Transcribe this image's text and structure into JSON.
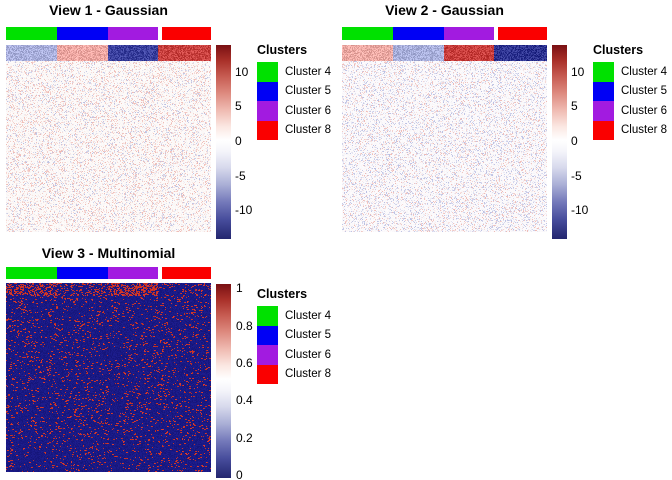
{
  "views": [
    {
      "title": "View 1 - Gaussian",
      "colorbar": {
        "ticks": [
          "10",
          "5",
          "0",
          "-5",
          "-10"
        ],
        "start_pct": 13.9,
        "step_pct": 17.8
      },
      "render": {
        "kind": "gaussian",
        "seed": 11,
        "warm_ratio": 0.62,
        "band_colors": [
          [
            169,
            175,
            220
          ],
          [
            238,
            167,
            162
          ],
          [
            58,
            64,
            158
          ],
          [
            202,
            66,
            64
          ]
        ],
        "body_base": [
          252,
          249,
          248
        ],
        "body_density": 0.32,
        "warm_tint": [
          228,
          138,
          128
        ],
        "cool_tint": [
          138,
          148,
          208
        ]
      }
    },
    {
      "title": "View 2 - Gaussian",
      "colorbar": {
        "ticks": [
          "10",
          "5",
          "0",
          "-5",
          "-10"
        ],
        "start_pct": 13.9,
        "step_pct": 17.8
      },
      "render": {
        "kind": "gaussian",
        "seed": 22,
        "warm_ratio": 0.4,
        "band_colors": [
          [
            237,
            170,
            164
          ],
          [
            168,
            175,
            219
          ],
          [
            201,
            62,
            60
          ],
          [
            45,
            51,
            145
          ]
        ],
        "body_base": [
          251,
          249,
          251
        ],
        "body_density": 0.32,
        "warm_tint": [
          228,
          138,
          128
        ],
        "cool_tint": [
          138,
          148,
          208
        ]
      }
    },
    {
      "title": "View 3 - Multinomial",
      "colorbar": {
        "ticks": [
          "1",
          "0.8",
          "0.6",
          "0.4",
          "0.2",
          "0"
        ],
        "start_pct": 2.1,
        "step_pct": 19.3
      },
      "render": {
        "kind": "multinomial",
        "seed": 33,
        "base": [
          25,
          25,
          132
        ],
        "dot": [
          202,
          52,
          40
        ],
        "dense_top": [
          0.34,
          0.2,
          0.42,
          0.1
        ],
        "dense_rows": 13,
        "body_density": 0.068,
        "dash_prob": 0.45
      }
    }
  ],
  "legend": {
    "title": "Clusters",
    "items": [
      {
        "label": "Cluster 4",
        "color": "#00E100"
      },
      {
        "label": "Cluster 5",
        "color": "#0000F5"
      },
      {
        "label": "Cluster 6",
        "color": "#A21BE0"
      },
      {
        "label": "Cluster 8",
        "color": "#FA0000"
      }
    ]
  },
  "colorbar_gradient": [
    "#7A1013 0%",
    "#A93029 8%",
    "#C65B51 16%",
    "#DE8B80 25%",
    "#F0BDB4 34%",
    "#FBE7E2 42%",
    "#FFFFFF 49%",
    "#F4F4FA 55%",
    "#D8DAED 63%",
    "#AAAFD6 72%",
    "#7479BA 81%",
    "#474D9C 90%",
    "#23266F 100%"
  ],
  "chart_data": [
    {
      "type": "heatmap",
      "title": "View 1 - Gaussian",
      "column_groups": [
        "Cluster 4",
        "Cluster 5",
        "Cluster 6",
        "Cluster 8"
      ],
      "column_group_colors": [
        "#00E100",
        "#0000F5",
        "#A21BE0",
        "#FA0000"
      ],
      "colorbar_ticks": [
        10,
        5,
        0,
        -5,
        -10
      ],
      "colorbar_range": [
        -13,
        13
      ],
      "legend_position": "right",
      "top_row_block_means": {
        "Cluster 4": -4,
        "Cluster 5": 4,
        "Cluster 6": -9,
        "Cluster 8": 8
      },
      "body_description": "near-zero gaussian noise (white with faint red/blue speckle)"
    },
    {
      "type": "heatmap",
      "title": "View 2 - Gaussian",
      "column_groups": [
        "Cluster 4",
        "Cluster 5",
        "Cluster 6",
        "Cluster 8"
      ],
      "column_group_colors": [
        "#00E100",
        "#0000F5",
        "#A21BE0",
        "#FA0000"
      ],
      "colorbar_ticks": [
        10,
        5,
        0,
        -5,
        -10
      ],
      "colorbar_range": [
        -13,
        13
      ],
      "legend_position": "right",
      "top_row_block_means": {
        "Cluster 4": 4,
        "Cluster 5": -4,
        "Cluster 6": 8,
        "Cluster 8": -9
      },
      "body_description": "near-zero gaussian noise (white with faint red/blue speckle)"
    },
    {
      "type": "heatmap",
      "title": "View 3 - Multinomial",
      "column_groups": [
        "Cluster 4",
        "Cluster 5",
        "Cluster 6",
        "Cluster 8"
      ],
      "column_group_colors": [
        "#00E100",
        "#0000F5",
        "#A21BE0",
        "#FA0000"
      ],
      "colorbar_ticks": [
        1,
        0.8,
        0.6,
        0.4,
        0.2,
        0
      ],
      "colorbar_range": [
        0,
        1
      ],
      "legend_position": "right",
      "body_description": "binary 0/1 matrix: dark navy (0) with ~7% scattered red (1) cells; top rows enriched (~20-42% ones) under Clusters 4, 5 and 6, sparse under Cluster 8"
    }
  ]
}
